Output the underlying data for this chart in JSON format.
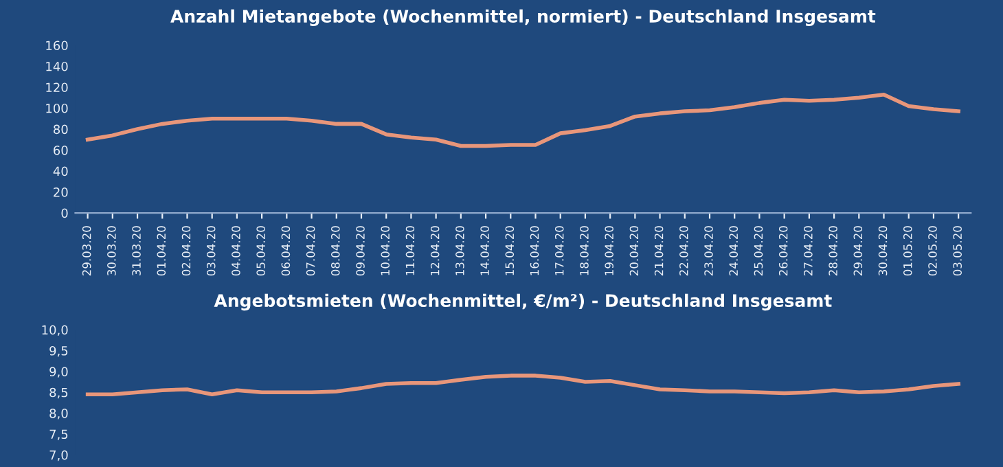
{
  "chart_data": [
    {
      "type": "line",
      "title": "Anzahl Mietangebote (Wochenmittel, normiert) - Deutschland Insgesamt",
      "categories": [
        "29.03.20",
        "30.03.20",
        "31.03.20",
        "01.04.20",
        "02.04.20",
        "03.04.20",
        "04.04.20",
        "05.04.20",
        "06.04.20",
        "07.04.20",
        "08.04.20",
        "09.04.20",
        "10.04.20",
        "11.04.20",
        "12.04.20",
        "13.04.20",
        "14.04.20",
        "15.04.20",
        "16.04.20",
        "17.04.20",
        "18.04.20",
        "19.04.20",
        "20.04.20",
        "21.04.20",
        "22.04.20",
        "23.04.20",
        "24.04.20",
        "25.04.20",
        "26.04.20",
        "27.04.20",
        "28.04.20",
        "29.04.20",
        "30.04.20",
        "01.05.20",
        "02.05.20",
        "03.05.20"
      ],
      "series": [
        {
          "color": "#e8967a",
          "values": [
            70,
            74,
            80,
            85,
            88,
            90,
            90,
            90,
            90,
            88,
            85,
            85,
            75,
            72,
            70,
            64,
            64,
            65,
            65,
            76,
            79,
            83,
            92,
            95,
            97,
            98,
            101,
            105,
            108,
            107,
            108,
            110,
            113,
            102,
            99,
            97
          ]
        }
      ],
      "ylim": [
        0,
        160
      ],
      "yticks": [
        0,
        20,
        40,
        60,
        80,
        100,
        120,
        140,
        160
      ],
      "grid": false,
      "legend": false,
      "marker": "none",
      "line_style": "solid"
    },
    {
      "type": "line",
      "title": "Angebotsmieten (Wochenmittel, €/m²) - Deutschland Insgesamt",
      "categories": [
        null,
        null,
        null,
        null,
        null,
        null,
        null,
        null,
        null,
        null,
        null,
        null,
        null,
        null,
        null,
        null,
        null,
        null,
        null,
        null,
        null,
        null,
        null,
        null,
        null,
        null,
        null,
        null,
        null,
        null,
        null,
        null,
        null,
        null,
        null,
        null
      ],
      "series": [
        {
          "color": "#e8967a",
          "values": [
            8.45,
            8.45,
            8.5,
            8.55,
            8.57,
            8.45,
            8.55,
            8.5,
            8.5,
            8.5,
            8.52,
            8.6,
            8.7,
            8.72,
            8.72,
            8.8,
            8.87,
            8.9,
            8.9,
            8.85,
            8.75,
            8.77,
            8.67,
            8.57,
            8.55,
            8.52,
            8.52,
            8.5,
            8.48,
            8.5,
            8.55,
            8.5,
            8.52,
            8.57,
            8.65,
            8.7
          ]
        }
      ],
      "ylim": [
        7.0,
        10.0
      ],
      "yticks": [
        {
          "value": 7.0,
          "label": "7,0"
        },
        {
          "value": 7.5,
          "label": "7,5"
        },
        {
          "value": 8.0,
          "label": "8,0"
        },
        {
          "value": 8.5,
          "label": "8,5"
        },
        {
          "value": 9.0,
          "label": "9,0"
        },
        {
          "value": 9.5,
          "label": "9,5"
        },
        {
          "value": 10.0,
          "label": "10,0"
        }
      ],
      "tick_labels": "y",
      "grid": false,
      "legend": false,
      "marker": "none",
      "line_style": "solid"
    }
  ]
}
